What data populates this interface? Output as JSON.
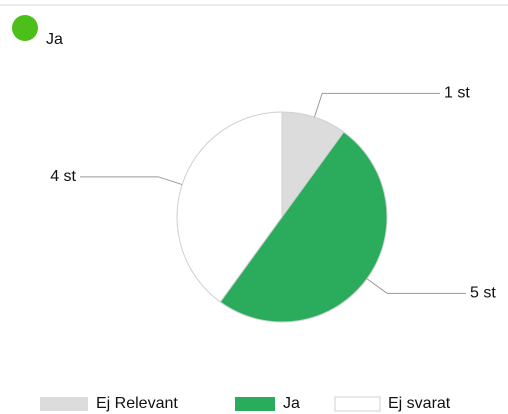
{
  "header": {
    "title": "Ja"
  },
  "chart_data": {
    "type": "pie",
    "categories": [
      "Ej Relevant",
      "Ja",
      "Ej svarat"
    ],
    "values": [
      1,
      5,
      4
    ],
    "value_labels": [
      "1 st",
      "5 st",
      "4 st"
    ],
    "colors": [
      "#dcdcdc",
      "#2aac5c",
      "#ffffff"
    ]
  }
}
